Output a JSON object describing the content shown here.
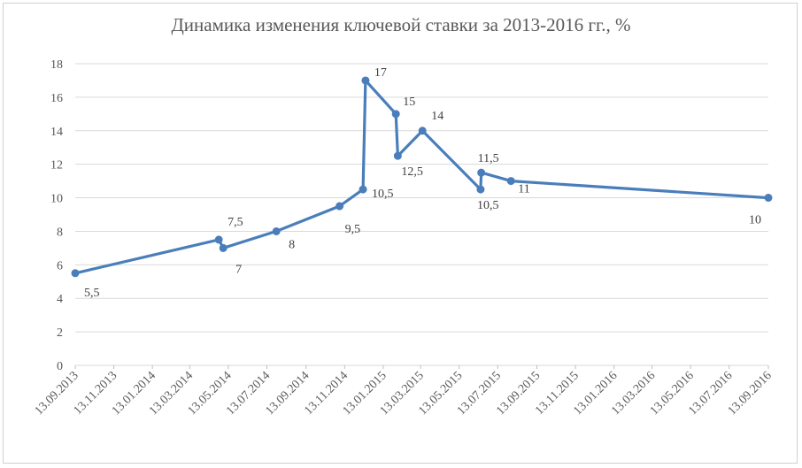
{
  "chart_data": {
    "type": "line",
    "title": "Динамика изменения ключевой ставки за 2013-2016 гг., %",
    "xlabel": "",
    "ylabel": "",
    "ylim": [
      0,
      18
    ],
    "yticks": [
      0,
      2,
      4,
      6,
      8,
      10,
      12,
      14,
      16,
      18
    ],
    "xlim": [
      "2013-09-13",
      "2016-09-13"
    ],
    "xtick_labels": [
      "13.09.2013",
      "13.11.2013",
      "13.01.2014",
      "13.03.2014",
      "13.05.2014",
      "13.07.2014",
      "13.09.2014",
      "13.11.2014",
      "13.01.2015",
      "13.03.2015",
      "13.05.2015",
      "13.07.2015",
      "13.09.2015",
      "13.11.2015",
      "13.01.2016",
      "13.03.2016",
      "13.05.2016",
      "13.07.2016",
      "13.09.2016"
    ],
    "xtick_dates": [
      "2013-09-13",
      "2013-11-13",
      "2014-01-13",
      "2014-03-13",
      "2014-05-13",
      "2014-07-13",
      "2014-09-13",
      "2014-11-13",
      "2015-01-13",
      "2015-03-13",
      "2015-05-13",
      "2015-07-13",
      "2015-09-13",
      "2015-11-13",
      "2016-01-13",
      "2016-03-13",
      "2016-05-13",
      "2016-07-13",
      "2016-09-13"
    ],
    "grid": true,
    "color": "#4a7ebb",
    "series": [
      {
        "points": [
          {
            "x": "2013-09-13",
            "y": 5.5,
            "label": "5,5"
          },
          {
            "x": "2014-04-28",
            "y": 7.5,
            "label": "7,5"
          },
          {
            "x": "2014-05-05",
            "y": 7,
            "label": "7"
          },
          {
            "x": "2014-07-28",
            "y": 8,
            "label": "8"
          },
          {
            "x": "2014-11-05",
            "y": 9.5,
            "label": "9,5"
          },
          {
            "x": "2014-12-12",
            "y": 10.5,
            "label": "10,5"
          },
          {
            "x": "2014-12-16",
            "y": 17,
            "label": "17"
          },
          {
            "x": "2015-02-02",
            "y": 15,
            "label": "15"
          },
          {
            "x": "2015-02-05",
            "y": 12.5,
            "label": "12,5"
          },
          {
            "x": "2015-03-16",
            "y": 14,
            "label": "14"
          },
          {
            "x": "2015-06-16",
            "y": 10.5,
            "label": "10,5"
          },
          {
            "x": "2015-06-17",
            "y": 11.5,
            "label": "11,5"
          },
          {
            "x": "2015-08-03",
            "y": 11,
            "label": "11"
          },
          {
            "x": "2016-09-13",
            "y": 10,
            "label": "10"
          }
        ]
      }
    ]
  }
}
